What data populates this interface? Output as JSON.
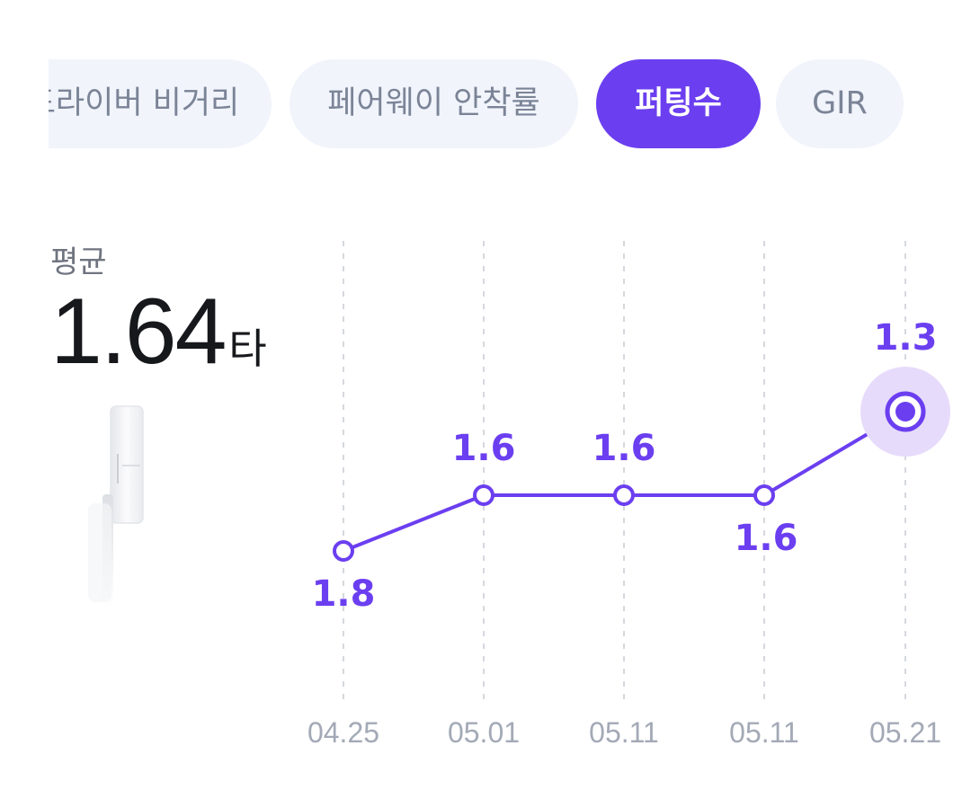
{
  "tabs": [
    {
      "label": "드라이버 비거리",
      "active": false
    },
    {
      "label": "페어웨이 안착률",
      "active": false
    },
    {
      "label": "퍼팅수",
      "active": true
    },
    {
      "label": "GIR",
      "active": false
    }
  ],
  "summary": {
    "label": "평균",
    "value": "1.64",
    "unit": "타"
  },
  "colors": {
    "accent": "#6b3ff0",
    "tab_bg": "#f1f4fb",
    "tab_text": "#7b8497",
    "axis_text": "#a3a9b6"
  },
  "chart_data": {
    "type": "line",
    "categories": [
      "04.25",
      "05.01",
      "05.11",
      "05.11",
      "05.21"
    ],
    "values": [
      1.8,
      1.6,
      1.6,
      1.6,
      1.3
    ],
    "data_labels": [
      "1.8",
      "1.6",
      "1.6",
      "1.6",
      "1.3"
    ],
    "highlighted_index": 4,
    "grid": "vertical-dashed",
    "axis_direction": "inverted"
  }
}
